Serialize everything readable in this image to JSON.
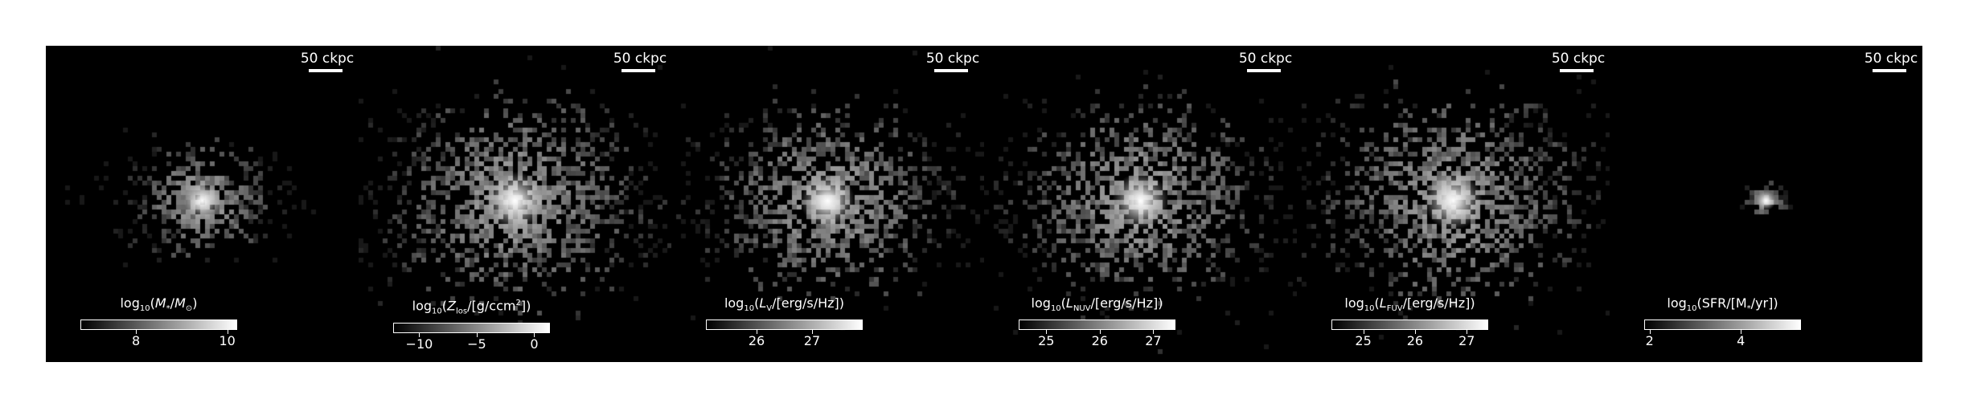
{
  "scale_bar_label": "50 ckpc",
  "panels": [
    {
      "id": "stellar-mass",
      "colorbar_title": "log<sub>10</sub>(<i>M</i><sub>*</sub>/<i>M</i><sub>⊙</sub>)",
      "colorbar_range": [
        6.8,
        10.2
      ],
      "ticks": [
        {
          "label": "8",
          "value": 8
        },
        {
          "label": "10",
          "value": 10
        }
      ],
      "halo": {
        "spread": 0.22,
        "count": 450,
        "core_brightness": 1.0,
        "extent": "compact"
      }
    },
    {
      "id": "metallicity",
      "colorbar_title": "log<sub>10</sub>(<i>Z</i><sub>los</sub>/[g/ccm<sup>2</sup>])",
      "colorbar_range": [
        -12.2,
        1.3
      ],
      "ticks": [
        {
          "label": "−10",
          "value": -10
        },
        {
          "label": "−5",
          "value": -5
        },
        {
          "label": "0",
          "value": 0
        }
      ],
      "halo": {
        "spread": 0.42,
        "count": 1200,
        "core_brightness": 1.0,
        "extent": "wide"
      }
    },
    {
      "id": "luminosity-v",
      "colorbar_title": "log<sub>10</sub>(<i>L</i><sub>V</sub>/[erg/s/Hz])",
      "colorbar_range": [
        25.1,
        27.9
      ],
      "ticks": [
        {
          "label": "26",
          "value": 26
        },
        {
          "label": "27",
          "value": 27
        }
      ],
      "halo": {
        "spread": 0.38,
        "count": 1000,
        "core_brightness": 1.0,
        "extent": "wide"
      }
    },
    {
      "id": "luminosity-nuv",
      "colorbar_title": "log<sub>10</sub>(<i>L</i><sub>NUV</sub>/[erg/s/Hz])",
      "colorbar_range": [
        24.5,
        27.4
      ],
      "ticks": [
        {
          "label": "25",
          "value": 25
        },
        {
          "label": "26",
          "value": 26
        },
        {
          "label": "27",
          "value": 27
        }
      ],
      "halo": {
        "spread": 0.4,
        "count": 1100,
        "core_brightness": 1.0,
        "extent": "wide"
      }
    },
    {
      "id": "luminosity-fuv",
      "colorbar_title": "log<sub>10</sub>(<i>L</i><sub>FUV</sub>/[erg/s/Hz])",
      "colorbar_range": [
        24.4,
        27.4
      ],
      "ticks": [
        {
          "label": "25",
          "value": 25
        },
        {
          "label": "26",
          "value": 26
        },
        {
          "label": "27",
          "value": 27
        }
      ],
      "halo": {
        "spread": 0.42,
        "count": 1150,
        "core_brightness": 1.0,
        "extent": "wide"
      }
    },
    {
      "id": "sfr",
      "colorbar_title": "log<sub>10</sub>(SFR/[M<sub>*</sub>/yr])",
      "colorbar_range": [
        1.9,
        5.3
      ],
      "ticks": [
        {
          "label": "2",
          "value": 2
        },
        {
          "label": "4",
          "value": 4
        }
      ],
      "halo": {
        "spread": 0.06,
        "count": 60,
        "core_brightness": 1.0,
        "extent": "tiny"
      }
    }
  ]
}
